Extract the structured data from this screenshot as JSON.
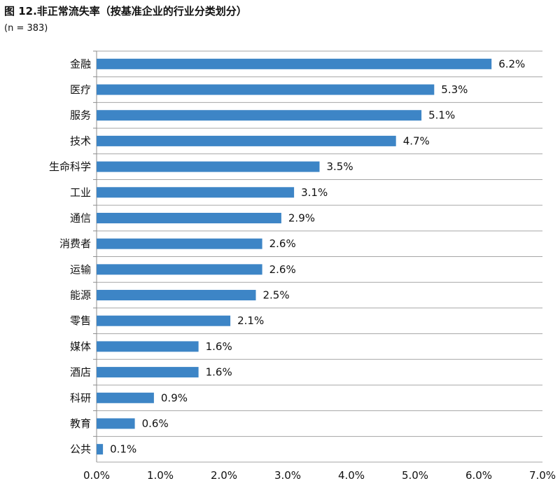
{
  "chart_data": {
    "type": "bar",
    "orientation": "horizontal",
    "title": "图 12.非正常流失率（按基准企业的行业分类划分）",
    "subtitle": "(n = 383)",
    "categories": [
      "金融",
      "医疗",
      "服务",
      "技术",
      "生命科学",
      "工业",
      "通信",
      "消费者",
      "运输",
      "能源",
      "零售",
      "媒体",
      "酒店",
      "科研",
      "教育",
      "公共"
    ],
    "values": [
      6.2,
      5.3,
      5.1,
      4.7,
      3.5,
      3.1,
      2.9,
      2.6,
      2.6,
      2.5,
      2.1,
      1.6,
      1.6,
      0.9,
      0.6,
      0.1
    ],
    "value_labels": [
      "6.2%",
      "5.3%",
      "5.1%",
      "4.7%",
      "3.5%",
      "3.1%",
      "2.9%",
      "2.6%",
      "2.6%",
      "2.5%",
      "2.1%",
      "1.6%",
      "1.6%",
      "0.9%",
      "0.6%",
      "0.1%"
    ],
    "xlim": [
      0,
      7
    ],
    "xticks": [
      "0.0%",
      "1.0%",
      "2.0%",
      "3.0%",
      "4.0%",
      "5.0%",
      "6.0%",
      "7.0%"
    ],
    "grid": "horizontal",
    "bar_color": "#3d85c6"
  }
}
